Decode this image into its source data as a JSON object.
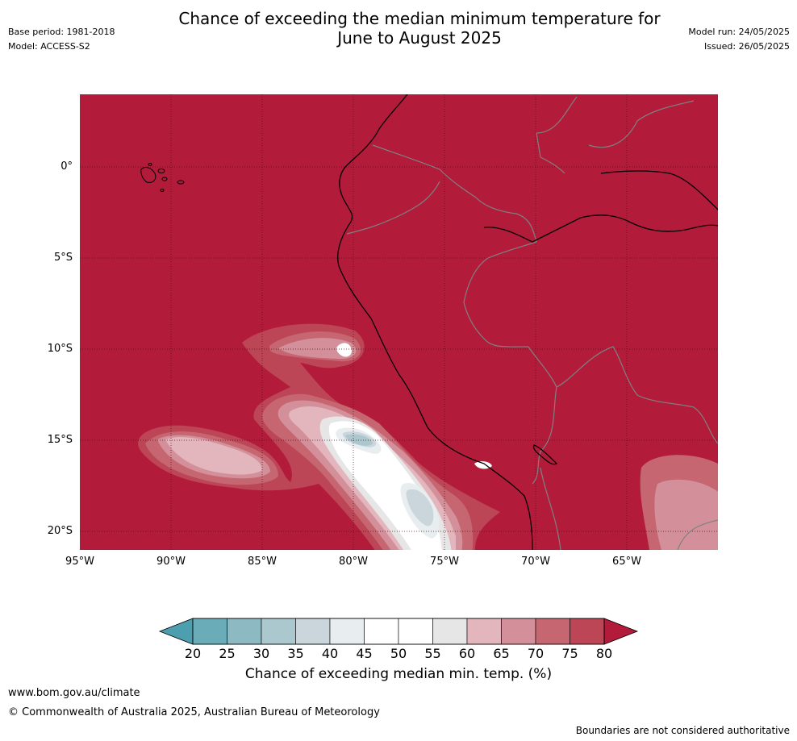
{
  "header": {
    "title_line1": "Chance of exceeding the median minimum temperature for",
    "title_line2": "June to August 2025",
    "base_period": "Base period: 1981-2018",
    "model": "Model: ACCESS-S2",
    "model_run": "Model run: 24/05/2025",
    "issued": "Issued: 26/05/2025"
  },
  "map": {
    "lat_labels": [
      "0°",
      "5°S",
      "10°S",
      "15°S",
      "20°S"
    ],
    "lon_labels": [
      "95°W",
      "90°W",
      "85°W",
      "80°W",
      "75°W",
      "70°W",
      "65°W"
    ],
    "base_color": "#b31b3b",
    "coastline_color": "#000000",
    "border_color": "#808080",
    "grid_color": "#4a0f1a"
  },
  "colorbar": {
    "ticks": [
      "20",
      "25",
      "30",
      "35",
      "40",
      "45",
      "50",
      "55",
      "60",
      "65",
      "70",
      "75",
      "80"
    ],
    "colors": [
      "#6aadb9",
      "#8db9c2",
      "#aac8ce",
      "#cad6db",
      "#e8eef0",
      "#ffffff",
      "#ffffff",
      "#e6e6e6",
      "#e2b6bc",
      "#d4909a",
      "#c66671",
      "#bc4556"
    ],
    "low_extend_color": "#4d9eae",
    "high_extend_color": "#b31b3b",
    "label": "Chance of exceeding median min. temp. (%)"
  },
  "footer": {
    "url": "www.bom.gov.au/climate",
    "copyright": "© Commonwealth of Australia 2025, Australian Bureau of Meteorology",
    "disclaimer": "Boundaries are not considered authoritative"
  }
}
